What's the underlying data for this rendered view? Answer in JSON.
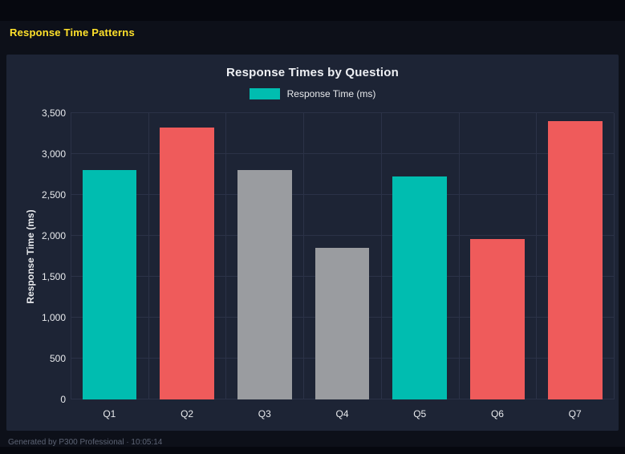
{
  "page": {
    "title": "Response Time Patterns"
  },
  "footer": {
    "text": "Generated by P300 Professional · 10:05:14"
  },
  "colors": {
    "page_bg": "#0d1019",
    "strip_bg": "#06080f",
    "panel_bg": "#1d2435",
    "title_yellow": "#ffe12b",
    "heading": "#eef0f4",
    "axis_text": "#e8eaed",
    "grid": "#2b3247",
    "footer_text": "#5d6475",
    "teal": "#00bdb0",
    "red": "#ef5b5b",
    "gray": "#9a9ca0"
  },
  "chart_data": {
    "type": "bar",
    "title": "Response Times by Question",
    "legend": "Response Time (ms)",
    "xlabel": "",
    "ylabel": "Response Time (ms)",
    "categories": [
      "Q1",
      "Q2",
      "Q3",
      "Q4",
      "Q5",
      "Q6",
      "Q7"
    ],
    "values": [
      2800,
      3320,
      2800,
      1850,
      2730,
      1960,
      3400
    ],
    "bar_colors": [
      "#00bdb0",
      "#ef5b5b",
      "#9a9ca0",
      "#9a9ca0",
      "#00bdb0",
      "#ef5b5b",
      "#ef5b5b"
    ],
    "ylim": [
      0,
      3500
    ],
    "ytick_values": [
      0,
      500,
      1000,
      1500,
      2000,
      2500,
      3000,
      3500
    ],
    "ytick_labels": [
      "0",
      "500",
      "1,000",
      "1,500",
      "2,000",
      "2,500",
      "3,000",
      "3,500"
    ],
    "grid": true,
    "legend_position": "top"
  }
}
